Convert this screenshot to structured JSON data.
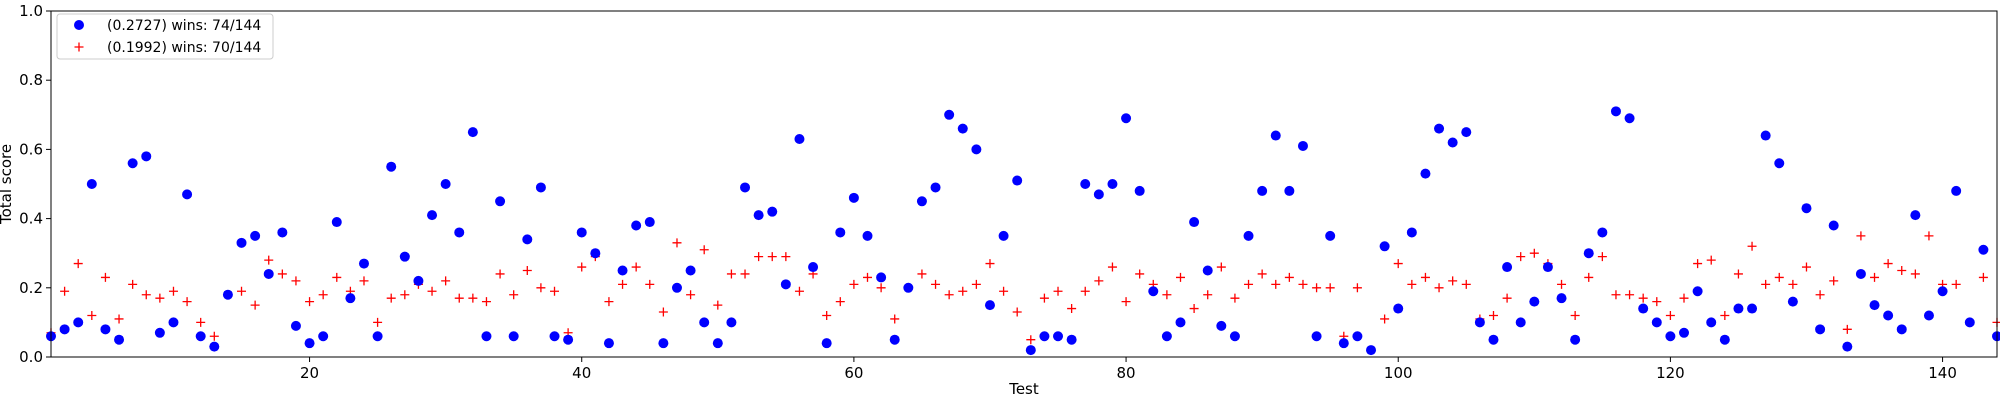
{
  "chart_data": {
    "type": "scatter",
    "title": "",
    "xlabel": "Test",
    "ylabel": "Total score",
    "xlim": [
      1,
      144
    ],
    "ylim": [
      0.0,
      1.0
    ],
    "xticks": [
      20,
      40,
      60,
      80,
      100,
      120,
      140
    ],
    "yticks": [
      0.0,
      0.2,
      0.4,
      0.6,
      0.8,
      1.0
    ],
    "ytick_labels": [
      "0.0",
      "0.2",
      "0.4",
      "0.6",
      "0.8",
      "1.0"
    ],
    "grid": false,
    "legend_position": "top-left",
    "series": [
      {
        "name": "(0.2727) wins: 74/144",
        "marker": "circle",
        "color": "#0000ff",
        "values": [
          0.06,
          0.08,
          0.1,
          0.5,
          0.08,
          0.05,
          0.56,
          0.58,
          0.07,
          0.1,
          0.47,
          0.06,
          0.03,
          0.18,
          0.33,
          0.35,
          0.24,
          0.36,
          0.09,
          0.04,
          0.06,
          0.39,
          0.17,
          0.27,
          0.06,
          0.55,
          0.29,
          0.22,
          0.41,
          0.5,
          0.36,
          0.65,
          0.06,
          0.45,
          0.06,
          0.34,
          0.49,
          0.06,
          0.05,
          0.36,
          0.3,
          0.04,
          0.25,
          0.38,
          0.39,
          0.04,
          0.2,
          0.25,
          0.1,
          0.04,
          0.1,
          0.49,
          0.41,
          0.42,
          0.21,
          0.63,
          0.26,
          0.04,
          0.36,
          0.46,
          0.35,
          0.23,
          0.05,
          0.2,
          0.45,
          0.49,
          0.7,
          0.66,
          0.6,
          0.15,
          0.35,
          0.51,
          0.02,
          0.06,
          0.06,
          0.05,
          0.5,
          0.47,
          0.5,
          0.69,
          0.48,
          0.19,
          0.06,
          0.1,
          0.39,
          0.25,
          0.09,
          0.06,
          0.35,
          0.48,
          0.64,
          0.48,
          0.61,
          0.06,
          0.35,
          0.04,
          0.06,
          0.02,
          0.32,
          0.14,
          0.36,
          0.53,
          0.66,
          0.62,
          0.65,
          0.1,
          0.05,
          0.26,
          0.1,
          0.16,
          0.26,
          0.17,
          0.05,
          0.3,
          0.36,
          0.71,
          0.69,
          0.14,
          0.1,
          0.06,
          0.07,
          0.19,
          0.1,
          0.05,
          0.14,
          0.14,
          0.64,
          0.56,
          0.16,
          0.43,
          0.08,
          0.38,
          0.03,
          0.24,
          0.15,
          0.12,
          0.08,
          0.41,
          0.12,
          0.19,
          0.48,
          0.1,
          0.31,
          0.06
        ]
      },
      {
        "name": "(0.1992) wins: 70/144",
        "marker": "plus",
        "color": "#ff0000",
        "values": [
          0.07,
          0.19,
          0.27,
          0.12,
          0.23,
          0.11,
          0.21,
          0.18,
          0.17,
          0.19,
          0.16,
          0.1,
          0.06,
          0.18,
          0.19,
          0.15,
          0.28,
          0.24,
          0.22,
          0.16,
          0.18,
          0.23,
          0.19,
          0.22,
          0.1,
          0.17,
          0.18,
          0.21,
          0.19,
          0.22,
          0.17,
          0.17,
          0.16,
          0.24,
          0.18,
          0.25,
          0.2,
          0.19,
          0.07,
          0.26,
          0.29,
          0.16,
          0.21,
          0.26,
          0.21,
          0.13,
          0.33,
          0.18,
          0.31,
          0.15,
          0.24,
          0.24,
          0.29,
          0.29,
          0.29,
          0.19,
          0.24,
          0.12,
          0.16,
          0.21,
          0.23,
          0.2,
          0.11,
          0.2,
          0.24,
          0.21,
          0.18,
          0.19,
          0.21,
          0.27,
          0.19,
          0.13,
          0.05,
          0.17,
          0.19,
          0.14,
          0.19,
          0.22,
          0.26,
          0.16,
          0.24,
          0.21,
          0.18,
          0.23,
          0.14,
          0.18,
          0.26,
          0.17,
          0.21,
          0.24,
          0.21,
          0.23,
          0.21,
          0.2,
          0.2,
          0.06,
          0.2,
          0.02,
          0.11,
          0.27,
          0.21,
          0.23,
          0.2,
          0.22,
          0.21,
          0.11,
          0.12,
          0.17,
          0.29,
          0.3,
          0.27,
          0.21,
          0.12,
          0.23,
          0.29,
          0.18,
          0.18,
          0.17,
          0.16,
          0.12,
          0.17,
          0.27,
          0.28,
          0.12,
          0.24,
          0.32,
          0.21,
          0.23,
          0.21,
          0.26,
          0.18,
          0.22,
          0.08,
          0.35,
          0.23,
          0.27,
          0.25,
          0.24,
          0.35,
          0.21,
          0.21,
          0.1,
          0.23,
          0.1
        ]
      }
    ]
  }
}
